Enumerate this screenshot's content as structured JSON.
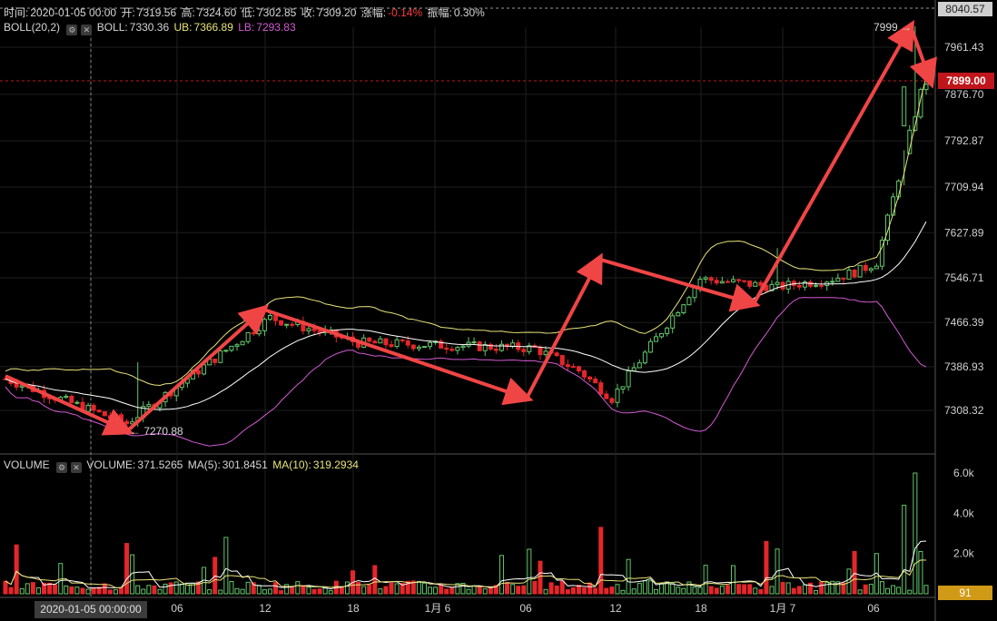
{
  "header": {
    "time_label": "时间:",
    "time": "2020-01-05 00:00",
    "open_label": "开:",
    "open": "7319.56",
    "high_label": "高:",
    "high": "7324.60",
    "low_label": "低:",
    "low": "7302.85",
    "close_label": "收:",
    "close": "7309.20",
    "change_label": "涨幅:",
    "change": "-0.14%",
    "amplitude_label": "振幅:",
    "amplitude": "0.30%"
  },
  "boll": {
    "name": "BOLL(20,2)",
    "mid_label": "BOLL:",
    "mid": "7330.36",
    "ub_label": "UB:",
    "ub": "7366.89",
    "lb_label": "LB:",
    "lb": "7293.83"
  },
  "volume": {
    "name": "VOLUME",
    "vol_label": "VOLUME:",
    "vol": "371.5265",
    "ma5_label": "MA(5):",
    "ma5": "301.8451",
    "ma10_label": "MA(10):",
    "ma10": "319.2934"
  },
  "colors": {
    "up": "#62c76b",
    "down": "#e5262a",
    "ub": "#e8e37a",
    "mid": "#ffffff",
    "lb": "#d35ad3",
    "arrow": "#f04545",
    "price_tag": "#c0161b",
    "vol_tag": "#d19a16"
  },
  "annotations": {
    "low_marker": "← 7270.88",
    "high_marker": "7999 →"
  },
  "price_tag": "7899.00",
  "volume_tag": "91",
  "top_tick_partial": "8040.57",
  "crosshair_time": "2020-01-05 00:00:00",
  "chart_data": {
    "type": "candlestick",
    "price_axis": {
      "ticks": [
        7961.43,
        7876.7,
        7792.87,
        7709.94,
        7627.89,
        7546.71,
        7466.39,
        7386.93,
        7308.32
      ],
      "tick_labels": [
        "7961.43",
        "7876.70",
        "7792.87",
        "7709.94",
        "7627.89",
        "7546.71",
        "7466.39",
        "7386.93",
        "7308.32"
      ]
    },
    "volume_axis": {
      "ticks": [
        6000,
        4000,
        2000
      ],
      "tick_labels": [
        "6.0k",
        "4.0k",
        "2.0k"
      ]
    },
    "x_axis": {
      "labels": [
        "06",
        "12",
        "18",
        "1月 6",
        "06",
        "12",
        "18",
        "1月 7",
        "06"
      ]
    },
    "trend_points": [
      7370,
      7271,
      7490,
      7330,
      7580,
      7500,
      7999,
      7899
    ]
  }
}
